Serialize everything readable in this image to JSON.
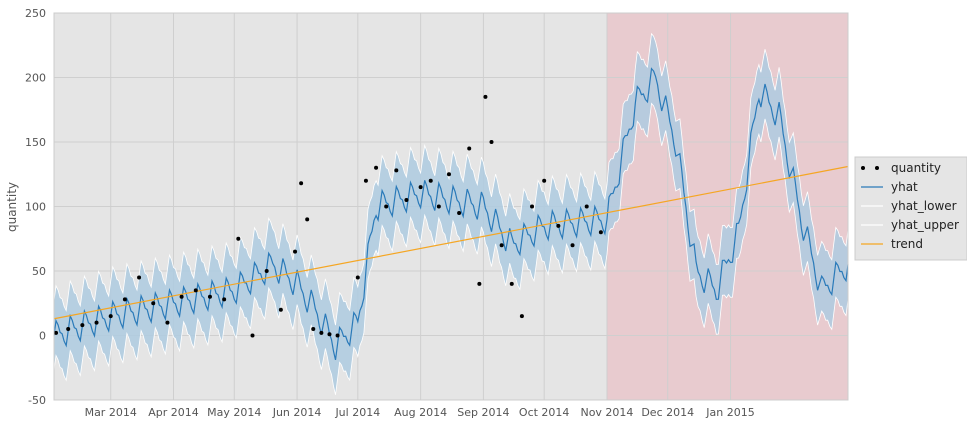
{
  "chart_data": {
    "type": "line",
    "title": "",
    "xlabel": "",
    "ylabel": "quantity",
    "ylim": [
      -50,
      250
    ],
    "xlim": [
      "2014-02-01",
      "2015-02-28"
    ],
    "x_tick_labels": [
      "Mar 2014",
      "Apr 2014",
      "May 2014",
      "Jun 2014",
      "Jul 2014",
      "Aug 2014",
      "Sep 2014",
      "Oct 2014",
      "Nov 2014",
      "Dec 2014",
      "Jan 2015"
    ],
    "x_tick_dates": [
      "2014-03-01",
      "2014-04-01",
      "2014-05-01",
      "2014-06-01",
      "2014-07-01",
      "2014-08-01",
      "2014-09-01",
      "2014-10-01",
      "2014-11-01",
      "2014-12-01",
      "2015-01-01"
    ],
    "y_ticks": [
      -50,
      0,
      50,
      100,
      150,
      200,
      250
    ],
    "grid": true,
    "legend_position": "right",
    "forecast_region": {
      "start": "2014-11-01",
      "end": "2015-02-28",
      "color": "#e8c8cc"
    },
    "colors": {
      "background": "#e5e5e5",
      "band": "#aecbe0",
      "yhat": "#2a7ab9",
      "trend": "#f5a623",
      "points": "#000000",
      "grid": "#cfcfcf"
    },
    "legend": [
      {
        "label": "quantity",
        "kind": "points"
      },
      {
        "label": "yhat",
        "kind": "line",
        "color": "#2a7ab9"
      },
      {
        "label": "yhat_lower",
        "kind": "line",
        "color": "#ffffff"
      },
      {
        "label": "yhat_upper",
        "kind": "line",
        "color": "#ffffff"
      },
      {
        "label": "trend",
        "kind": "line",
        "color": "#f5a623"
      }
    ],
    "trend": {
      "x": [
        "2014-02-01",
        "2015-02-28"
      ],
      "y": [
        13,
        131
      ]
    },
    "yhat_keypoints": {
      "x": [
        "2014-02-01",
        "2014-03-01",
        "2014-04-01",
        "2014-05-01",
        "2014-05-20",
        "2014-06-01",
        "2014-06-10",
        "2014-06-20",
        "2014-07-01",
        "2014-07-10",
        "2014-08-01",
        "2014-09-01",
        "2014-09-15",
        "2014-10-01",
        "2014-11-01",
        "2014-11-15",
        "2014-11-25",
        "2014-12-05",
        "2014-12-15",
        "2014-12-25",
        "2015-01-05",
        "2015-01-15",
        "2015-01-25",
        "2015-02-05",
        "2015-02-15",
        "2015-02-28"
      ],
      "y": [
        0,
        15,
        25,
        35,
        55,
        40,
        20,
        -8,
        10,
        100,
        110,
        100,
        70,
        85,
        90,
        180,
        200,
        150,
        50,
        35,
        80,
        190,
        170,
        90,
        35,
        55
      ]
    },
    "band_halfwidth": 27,
    "series": [
      {
        "name": "quantity",
        "x": [
          "2014-02-02",
          "2014-02-08",
          "2014-02-15",
          "2014-02-22",
          "2014-03-01",
          "2014-03-08",
          "2014-03-15",
          "2014-03-22",
          "2014-03-29",
          "2014-04-05",
          "2014-04-12",
          "2014-04-19",
          "2014-04-26",
          "2014-05-03",
          "2014-05-10",
          "2014-05-17",
          "2014-05-24",
          "2014-05-31",
          "2014-06-03",
          "2014-06-06",
          "2014-06-09",
          "2014-06-13",
          "2014-06-17",
          "2014-06-21",
          "2014-07-01",
          "2014-07-05",
          "2014-07-10",
          "2014-07-15",
          "2014-07-20",
          "2014-07-25",
          "2014-08-01",
          "2014-08-06",
          "2014-08-10",
          "2014-08-15",
          "2014-08-20",
          "2014-08-25",
          "2014-08-30",
          "2014-09-02",
          "2014-09-05",
          "2014-09-10",
          "2014-09-15",
          "2014-09-20",
          "2014-09-25",
          "2014-10-01",
          "2014-10-08",
          "2014-10-15",
          "2014-10-22",
          "2014-10-29"
        ],
        "y": [
          2,
          5,
          8,
          10,
          15,
          28,
          45,
          25,
          10,
          30,
          35,
          30,
          28,
          75,
          0,
          50,
          20,
          65,
          118,
          90,
          5,
          2,
          1,
          0,
          45,
          120,
          130,
          100,
          128,
          105,
          115,
          120,
          100,
          125,
          95,
          145,
          40,
          185,
          150,
          70,
          40,
          15,
          100,
          120,
          85,
          70,
          100,
          80
        ]
      }
    ]
  }
}
